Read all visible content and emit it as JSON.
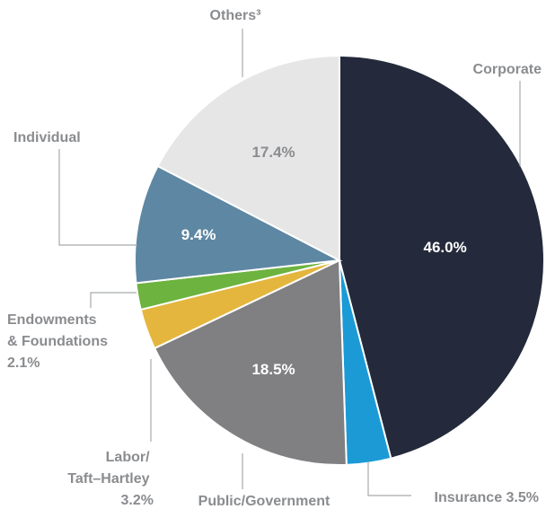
{
  "chart_data": {
    "type": "pie",
    "slices": [
      {
        "label": "Corporate",
        "value": 46.0,
        "value_label": "46.0%",
        "color": "#242a3b",
        "value_color": "#ffffff"
      },
      {
        "label": "Insurance 3.5%",
        "value": 3.5,
        "value_label": "",
        "color": "#1b9ad6",
        "value_color": "#ffffff"
      },
      {
        "label": "Public/Government",
        "value": 18.5,
        "value_label": "18.5%",
        "color": "#808083",
        "value_color": "#ffffff"
      },
      {
        "label": "Labor/ Taft–Hartley 3.2%",
        "label_lines": [
          "Labor/",
          "Taft–Hartley",
          "3.2%"
        ],
        "value": 3.2,
        "value_label": "",
        "color": "#e5b63e",
        "value_color": "#ffffff"
      },
      {
        "label": "Endowments & Foundations 2.1%",
        "label_lines": [
          "Endowments",
          "& Foundations",
          "2.1%"
        ],
        "value": 2.1,
        "value_label": "",
        "color": "#6db33f",
        "value_color": "#ffffff"
      },
      {
        "label": "Individual",
        "value": 9.4,
        "value_label": "9.4%",
        "color": "#5e87a3",
        "value_color": "#ffffff"
      },
      {
        "label": "Others³",
        "value": 17.4,
        "value_label": "17.4%",
        "color": "#e6e6e7",
        "value_color": "#8a8c8f"
      }
    ],
    "start_angle": "12 o'clock",
    "direction": "clockwise",
    "legend": "none"
  }
}
